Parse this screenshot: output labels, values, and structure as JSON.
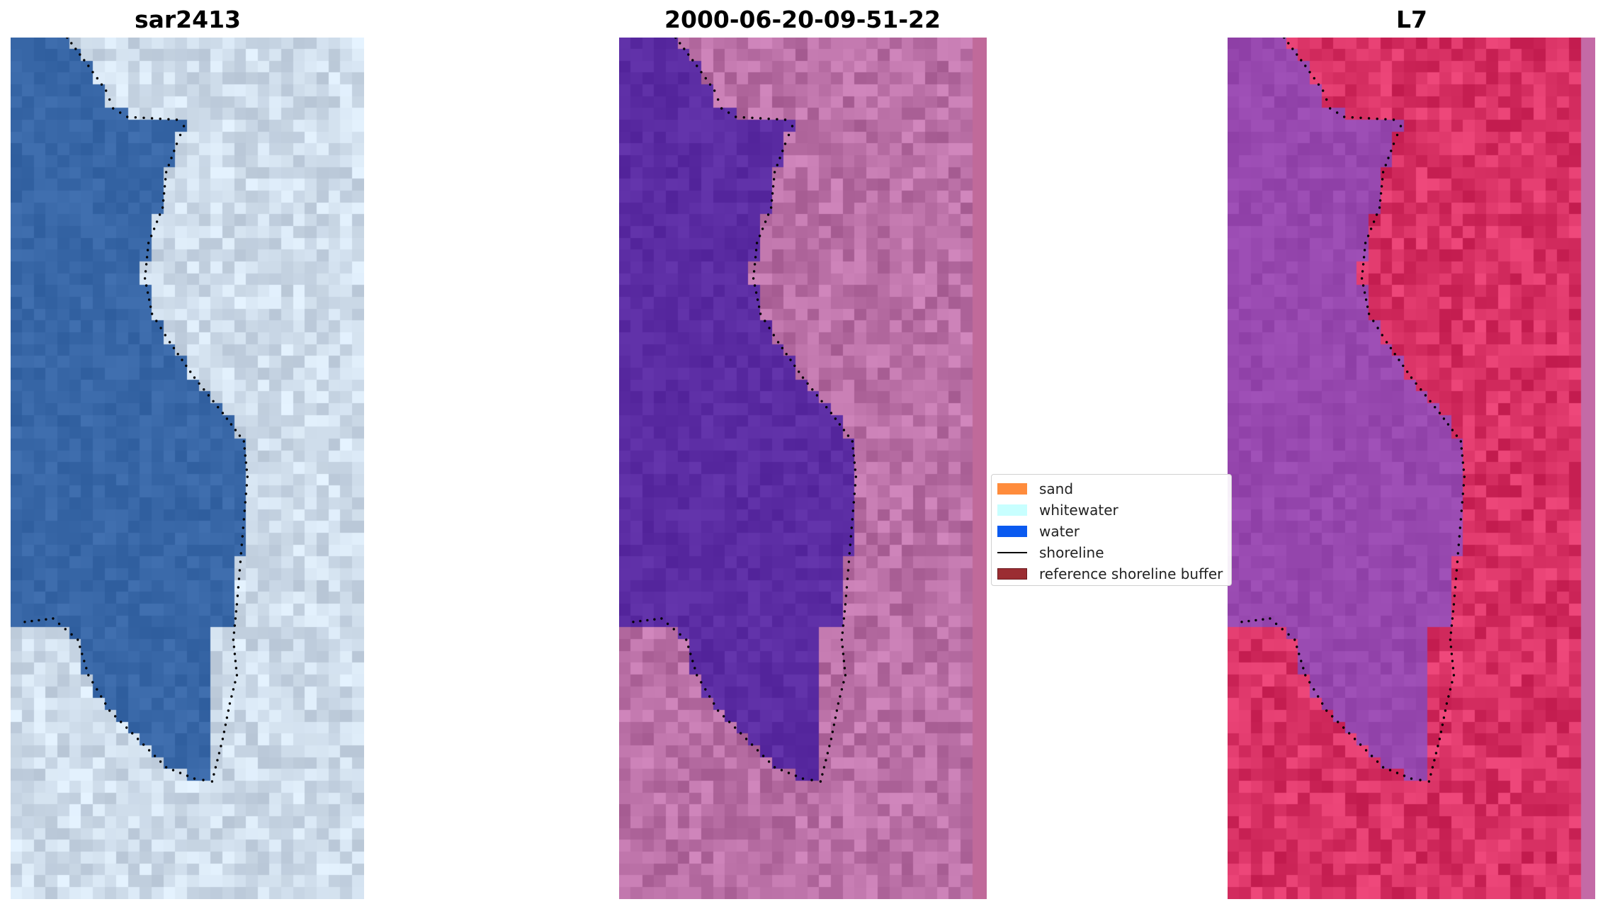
{
  "panels": {
    "left": {
      "title": "sar2413"
    },
    "middle": {
      "title": "2000-06-20-09-51-22"
    },
    "right": {
      "title": "L7"
    }
  },
  "legend": {
    "items": [
      {
        "label": "sand",
        "color": "#ff8c3c",
        "kind": "patch"
      },
      {
        "label": "whitewater",
        "color": "#c8ffff",
        "kind": "patch"
      },
      {
        "label": "water",
        "color": "#0a5af0",
        "kind": "patch"
      },
      {
        "label": "shoreline",
        "color": "#000000",
        "kind": "line"
      },
      {
        "label": "reference shoreline buffer",
        "color": "#9b2d32",
        "edge": "#6b1a1e",
        "kind": "patch"
      }
    ]
  },
  "colors": {
    "sar_water": "#2f5e9e",
    "sar_land": "#b8c6d6",
    "class_water": "#52239a",
    "class_land": "#a45a90",
    "l7_water": "#8e3fa6",
    "l7_land": "#c21b4e"
  }
}
